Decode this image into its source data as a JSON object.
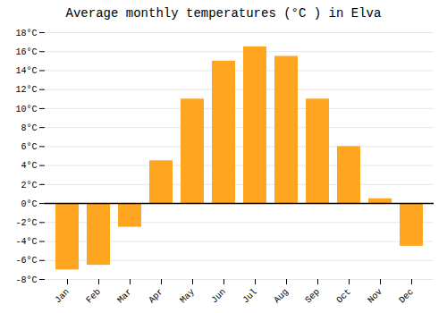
{
  "chart_data": {
    "type": "bar",
    "title": "Average monthly temperatures (°C ) in Elva",
    "categories": [
      "Jan",
      "Feb",
      "Mar",
      "Apr",
      "May",
      "Jun",
      "Jul",
      "Aug",
      "Sep",
      "Oct",
      "Nov",
      "Dec"
    ],
    "values": [
      -7.0,
      -6.5,
      -2.5,
      4.5,
      11.0,
      15.0,
      16.5,
      15.5,
      11.0,
      6.0,
      0.5,
      -4.5
    ],
    "color": "#FFA520",
    "ylim": [
      -8,
      18
    ],
    "yticks": [
      {
        "value": -8,
        "label": "-8°C"
      },
      {
        "value": -6,
        "label": "-6°C"
      },
      {
        "value": -4,
        "label": "-4°C"
      },
      {
        "value": -2,
        "label": "-2°C"
      },
      {
        "value": 0,
        "label": "0°C"
      },
      {
        "value": 2,
        "label": "2°C"
      },
      {
        "value": 4,
        "label": "4°C"
      },
      {
        "value": 6,
        "label": "6°C"
      },
      {
        "value": 8,
        "label": "8°C"
      },
      {
        "value": 10,
        "label": "10°C"
      },
      {
        "value": 12,
        "label": "12°C"
      },
      {
        "value": 14,
        "label": "14°C"
      },
      {
        "value": 16,
        "label": "16°C"
      },
      {
        "value": 18,
        "label": "18°C"
      }
    ],
    "grid": true
  }
}
